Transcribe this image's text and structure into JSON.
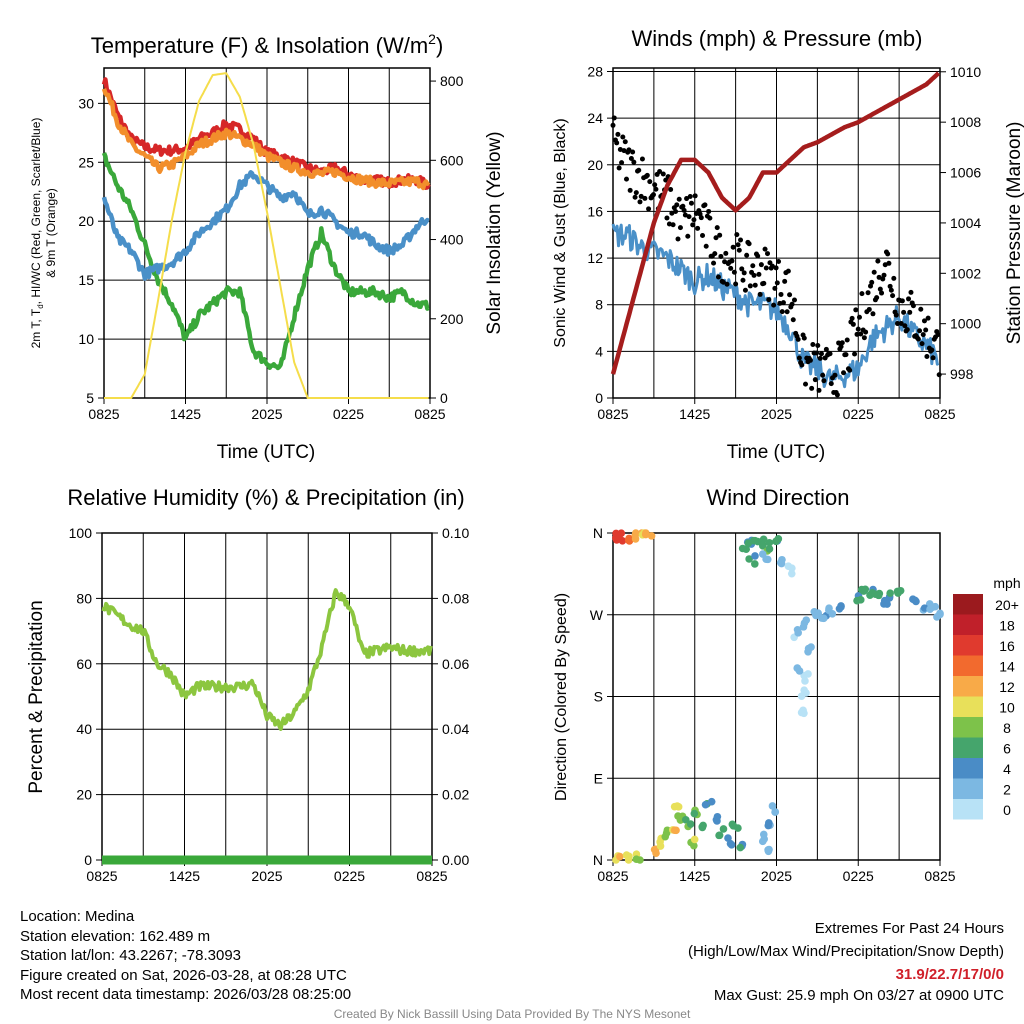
{
  "chart_data": [
    {
      "type": "line",
      "title": "Temperature (F) & Insolation (W/m²)",
      "xlabel": "Time (UTC)",
      "ylabel": "2m T, Td, HI/WC (Red, Green, Scarlet/Blue) & 9m T (Orange)",
      "ylabel_line1": "2m T, T",
      "ylabel_sub": "d",
      "ylabel_line1b": ", HI/WC (Red, Green, Scarlet/Blue)",
      "ylabel_line2": "& 9m T (Orange)",
      "y2label": "Solar Insolation (Yellow)",
      "xticks": [
        "0825",
        "1425",
        "2025",
        "0225",
        "0825"
      ],
      "yticks": [
        5,
        10,
        15,
        20,
        25,
        30
      ],
      "y2ticks": [
        0,
        200,
        400,
        600,
        800
      ],
      "ylim": [
        5,
        33
      ],
      "y2lim": [
        0,
        833
      ],
      "x_hours": [
        0,
        1,
        2,
        3,
        4,
        5,
        6,
        7,
        8,
        9,
        10,
        11,
        12,
        13,
        14,
        15,
        16,
        17,
        18,
        19,
        20,
        21,
        22,
        23,
        24
      ],
      "series": [
        {
          "name": "2m T",
          "color": "#d62728",
          "values": [
            32,
            29,
            27,
            26.3,
            26,
            26,
            26.2,
            27,
            27.5,
            28.2,
            27.8,
            27,
            25.8,
            25.5,
            25,
            24.5,
            24.2,
            24.5,
            24,
            23.5,
            23.5,
            23.3,
            23.5,
            23.5,
            23
          ]
        },
        {
          "name": "9m T",
          "color": "#f28e2b",
          "values": [
            31.5,
            28.5,
            26.5,
            25.5,
            24.5,
            24.8,
            25.5,
            26.5,
            27,
            27.5,
            27,
            26.5,
            25.5,
            25,
            24.5,
            24.2,
            24,
            24.2,
            23.8,
            23.5,
            23.3,
            23.2,
            23.3,
            23.4,
            23
          ]
        },
        {
          "name": "Td",
          "color": "#3aa83a",
          "values": [
            25.5,
            23,
            21,
            18,
            15,
            13,
            10,
            12,
            13,
            14,
            14,
            9,
            8,
            7.5,
            12,
            16,
            19,
            16,
            14,
            14,
            14,
            13.5,
            14,
            13,
            12.8
          ]
        },
        {
          "name": "HI/WC",
          "color": "#4a90c8",
          "values": [
            22,
            18.5,
            17.5,
            15.5,
            16,
            16.5,
            17.5,
            19,
            20,
            21,
            23,
            24,
            23,
            22,
            22.5,
            20.5,
            21,
            20,
            19,
            19,
            18,
            17.5,
            18,
            19.5,
            20.5
          ]
        },
        {
          "name": "Solar Insolation",
          "color": "#f5dd4b",
          "axis": "right",
          "values": [
            0,
            0,
            0,
            60,
            250,
            450,
            620,
            750,
            815,
            820,
            760,
            640,
            470,
            280,
            90,
            0,
            0,
            0,
            0,
            0,
            0,
            0,
            0,
            0,
            0
          ]
        }
      ]
    },
    {
      "type": "line",
      "title": "Winds (mph) & Pressure (mb)",
      "xlabel": "Time (UTC)",
      "ylabel": "Sonic Wind & Gust (Blue, Black)",
      "y2label": "Station Pressure (Maroon)",
      "xticks": [
        "0825",
        "1425",
        "2025",
        "0225",
        "0825"
      ],
      "yticks": [
        0,
        4,
        8,
        12,
        16,
        20,
        24,
        28
      ],
      "y2ticks": [
        998,
        1000,
        1002,
        1004,
        1006,
        1008,
        1010
      ],
      "ylim": [
        0,
        28.3
      ],
      "y2lim": [
        997.05,
        1010.15
      ],
      "x_hours": [
        0,
        1,
        2,
        3,
        4,
        5,
        6,
        7,
        8,
        9,
        10,
        11,
        12,
        13,
        14,
        15,
        16,
        17,
        18,
        19,
        20,
        21,
        22,
        23,
        24
      ],
      "series": [
        {
          "name": "Sonic Wind",
          "color": "#4a90c8",
          "values": [
            14,
            14,
            13,
            12.5,
            12,
            11,
            10,
            10.5,
            9.5,
            9,
            8,
            8,
            7.5,
            6,
            3,
            2.5,
            1.5,
            2,
            2.5,
            5,
            6,
            7,
            5.5,
            4.5,
            3
          ]
        },
        {
          "name": "Gust",
          "color": "#000000",
          "style": "points",
          "values": [
            22,
            20,
            19,
            18,
            17,
            15,
            16,
            14,
            12,
            12,
            11,
            11,
            10,
            9,
            3,
            2.5,
            2,
            3,
            6,
            9,
            12,
            8,
            7,
            5.5,
            4
          ]
        },
        {
          "name": "Station Pressure",
          "color": "#a51d1d",
          "axis": "right",
          "values": [
            998,
            1000,
            1002,
            1004,
            1005.5,
            1006.5,
            1006.5,
            1006,
            1005,
            1004.5,
            1005,
            1006,
            1006,
            1006.5,
            1007,
            1007.2,
            1007.5,
            1007.8,
            1008,
            1008.3,
            1008.6,
            1008.9,
            1009.2,
            1009.5,
            1010
          ]
        }
      ]
    },
    {
      "type": "line",
      "title": "Relative Humidity (%) & Precipitation (in)",
      "xlabel": "",
      "ylabel": "Percent & Precipitation",
      "xticks": [
        "0825",
        "1425",
        "2025",
        "0225",
        "0825"
      ],
      "yticks": [
        0,
        20,
        40,
        60,
        80,
        100
      ],
      "y2ticks": [
        "0.00",
        "0.02",
        "0.04",
        "0.06",
        "0.08",
        "0.10"
      ],
      "ylim": [
        0,
        100
      ],
      "y2lim": [
        0,
        0.1
      ],
      "x_hours": [
        0,
        1,
        2,
        3,
        4,
        5,
        6,
        7,
        8,
        9,
        10,
        11,
        12,
        13,
        14,
        15,
        16,
        17,
        18,
        19,
        20,
        21,
        22,
        23,
        24
      ],
      "series": [
        {
          "name": "Relative Humidity",
          "color": "#8cc63f",
          "values": [
            78,
            75,
            72,
            70,
            60,
            57,
            50,
            53,
            53,
            53,
            53,
            54,
            44,
            41,
            45,
            52,
            65,
            82,
            78,
            63,
            64,
            65,
            64,
            64,
            64
          ]
        },
        {
          "name": "Precipitation",
          "color": "#3aa83a",
          "axis": "right",
          "values": [
            0,
            0,
            0,
            0,
            0,
            0,
            0,
            0,
            0,
            0,
            0,
            0,
            0,
            0,
            0,
            0,
            0,
            0,
            0,
            0,
            0,
            0,
            0,
            0,
            0
          ]
        }
      ]
    },
    {
      "type": "scatter",
      "title": "Wind Direction",
      "xlabel": "",
      "ylabel": "Direction (Colored By Speed)",
      "xticks": [
        "0825",
        "1425",
        "2025",
        "0225",
        "0825"
      ],
      "yticks": [
        "N",
        "E",
        "S",
        "W",
        "N"
      ],
      "ylim": [
        0,
        360
      ],
      "legend": {
        "title": "mph",
        "position": "right",
        "labels": [
          "20+",
          "18",
          "16",
          "14",
          "12",
          "10",
          "8",
          "6",
          "4",
          "2",
          "0"
        ],
        "colors": [
          "#9b1a1e",
          "#c0202a",
          "#e03a2e",
          "#f26a2e",
          "#f8aa48",
          "#e8e05a",
          "#7dc24a",
          "#45a56c",
          "#4a8cc6",
          "#7cb8e2",
          "#b8e2f6"
        ]
      },
      "points_hour_dir_speed": [
        [
          0.1,
          357,
          16
        ],
        [
          0.5,
          355,
          17
        ],
        [
          1,
          356,
          15
        ],
        [
          1.5,
          358,
          13
        ],
        [
          2.2,
          359,
          12
        ],
        [
          2.6,
          358,
          13
        ],
        [
          0.3,
          2,
          12
        ],
        [
          1.2,
          1,
          10
        ],
        [
          1.8,
          3,
          10
        ],
        [
          3,
          10,
          13
        ],
        [
          3.5,
          20,
          11
        ],
        [
          4,
          30,
          10
        ],
        [
          4.5,
          35,
          12
        ],
        [
          5,
          45,
          9
        ],
        [
          5.5,
          40,
          8
        ],
        [
          6,
          50,
          8
        ],
        [
          6.5,
          35,
          7
        ],
        [
          7,
          60,
          6
        ],
        [
          7.5,
          45,
          5
        ],
        [
          8,
          30,
          6
        ],
        [
          8.5,
          20,
          5
        ],
        [
          9,
          35,
          7
        ],
        [
          9.5,
          15,
          6
        ],
        [
          4.7,
          55,
          11
        ],
        [
          5.8,
          20,
          10
        ],
        [
          11,
          25,
          4
        ],
        [
          11.5,
          40,
          4
        ],
        [
          11.7,
          55,
          3
        ],
        [
          11.3,
          10,
          3
        ],
        [
          10,
          352,
          6
        ],
        [
          10.5,
          355,
          8
        ],
        [
          11,
          350,
          7
        ],
        [
          11.5,
          345,
          8
        ],
        [
          12,
          355,
          6
        ],
        [
          9.7,
          345,
          7
        ],
        [
          10.2,
          330,
          6
        ],
        [
          11.2,
          335,
          4
        ],
        [
          12.5,
          330,
          3
        ],
        [
          13,
          320,
          2
        ],
        [
          13.5,
          250,
          2
        ],
        [
          14,
          260,
          3
        ],
        [
          14.5,
          230,
          2
        ],
        [
          15,
          270,
          3
        ],
        [
          15.5,
          265,
          4
        ],
        [
          16,
          275,
          3
        ],
        [
          16.5,
          280,
          4
        ],
        [
          13.8,
          165,
          1
        ],
        [
          14,
          185,
          2
        ],
        [
          14.2,
          200,
          1
        ],
        [
          13.7,
          210,
          2
        ],
        [
          18,
          290,
          6
        ],
        [
          18.5,
          300,
          7
        ],
        [
          19,
          295,
          6
        ],
        [
          19.5,
          292,
          7
        ],
        [
          20,
          285,
          5
        ],
        [
          20.5,
          293,
          6
        ],
        [
          21,
          296,
          7
        ],
        [
          22,
          285,
          5
        ],
        [
          23,
          280,
          4
        ],
        [
          24,
          270,
          3
        ],
        [
          23.5,
          275,
          4
        ]
      ]
    }
  ],
  "footer_left": [
    "Location: Medina",
    "Station elevation: 162.489 m",
    "Station lat/lon: 43.2267; -78.3093",
    "Figure created on Sat, 2026-03-28, at 08:28 UTC",
    "Most recent data timestamp: 2026/03/28 08:25:00"
  ],
  "extremes": {
    "title": "Extremes For Past 24 Hours",
    "subtitle": "(High/Low/Max Wind/Precipitation/Snow Depth)",
    "values": "31.9/22.7/17/0/0",
    "values_color": "#d0202a",
    "max_gust": "Max Gust: 25.9 mph On 03/27 at 0900 UTC"
  },
  "credit": "Created By Nick Bassill Using Data Provided By The NYS Mesonet"
}
